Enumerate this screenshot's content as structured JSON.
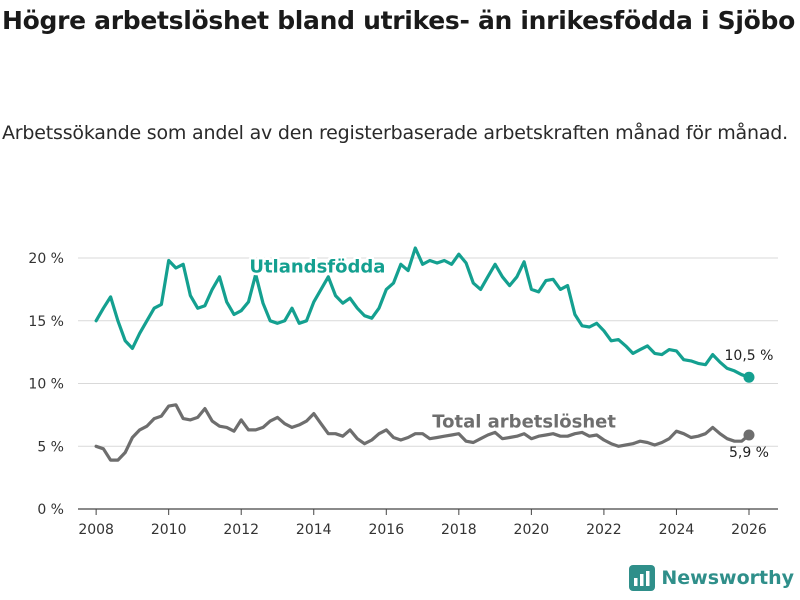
{
  "title": "Högre arbetslöshet bland utrikes- än inrikesfödda i Sjöbo",
  "subtitle": "Arbetssökande som andel av den registerbaserade arbetskraften månad för månad.",
  "brand": {
    "name": "Newsworthy",
    "icon": "newsworthy-logo-icon",
    "color": "#2f8f8a"
  },
  "chart_data": {
    "type": "line",
    "title": "Högre arbetslöshet bland utrikes- än inrikesfödda i Sjöbo",
    "xlabel": "",
    "ylabel": "",
    "xlim": [
      2007.5,
      2026.8
    ],
    "ylim": [
      0,
      20
    ],
    "grid": true,
    "y_ticks": [
      0,
      5,
      10,
      15,
      20
    ],
    "y_tick_labels": [
      "0 %",
      "5 %",
      "10 %",
      "15 %",
      "20 %"
    ],
    "x_ticks": [
      2008,
      2010,
      2012,
      2014,
      2016,
      2018,
      2020,
      2022,
      2024,
      2026
    ],
    "x_tick_labels": [
      "2008",
      "2010",
      "2012",
      "2014",
      "2016",
      "2018",
      "2020",
      "2022",
      "2024",
      "2026"
    ],
    "series": [
      {
        "name": "Utlandsfödda",
        "color": "#14a090",
        "end_label": "10,5 %",
        "x": [
          2008.0,
          2008.2,
          2008.4,
          2008.6,
          2008.8,
          2009.0,
          2009.2,
          2009.4,
          2009.6,
          2009.8,
          2010.0,
          2010.2,
          2010.4,
          2010.6,
          2010.8,
          2011.0,
          2011.2,
          2011.4,
          2011.6,
          2011.8,
          2012.0,
          2012.2,
          2012.4,
          2012.6,
          2012.8,
          2013.0,
          2013.2,
          2013.4,
          2013.6,
          2013.8,
          2014.0,
          2014.2,
          2014.4,
          2014.6,
          2014.8,
          2015.0,
          2015.2,
          2015.4,
          2015.6,
          2015.8,
          2016.0,
          2016.2,
          2016.4,
          2016.6,
          2016.8,
          2017.0,
          2017.2,
          2017.4,
          2017.6,
          2017.8,
          2018.0,
          2018.2,
          2018.4,
          2018.6,
          2018.8,
          2019.0,
          2019.2,
          2019.4,
          2019.6,
          2019.8,
          2020.0,
          2020.2,
          2020.4,
          2020.6,
          2020.8,
          2021.0,
          2021.2,
          2021.4,
          2021.6,
          2021.8,
          2022.0,
          2022.2,
          2022.4,
          2022.6,
          2022.8,
          2023.0,
          2023.2,
          2023.4,
          2023.6,
          2023.8,
          2024.0,
          2024.2,
          2024.4,
          2024.6,
          2024.8,
          2025.0,
          2025.2,
          2025.4,
          2025.6,
          2025.8,
          2026.0
        ],
        "values": [
          15.0,
          16.0,
          16.9,
          15.0,
          13.4,
          12.8,
          14.0,
          15.0,
          16.0,
          16.3,
          19.8,
          19.2,
          19.5,
          17.0,
          16.0,
          16.2,
          17.5,
          18.5,
          16.5,
          15.5,
          15.8,
          16.5,
          18.7,
          16.4,
          15.0,
          14.8,
          15.0,
          16.0,
          14.8,
          15.0,
          16.5,
          17.5,
          18.5,
          17.0,
          16.4,
          16.8,
          16.0,
          15.4,
          15.2,
          16.0,
          17.5,
          18.0,
          19.5,
          19.0,
          20.8,
          19.5,
          19.8,
          19.6,
          19.8,
          19.5,
          20.3,
          19.6,
          18.0,
          17.5,
          18.5,
          19.5,
          18.5,
          17.8,
          18.5,
          19.7,
          17.5,
          17.3,
          18.2,
          18.3,
          17.5,
          17.8,
          15.5,
          14.6,
          14.5,
          14.8,
          14.2,
          13.4,
          13.5,
          13.0,
          12.4,
          12.7,
          13.0,
          12.4,
          12.3,
          12.7,
          12.6,
          11.9,
          11.8,
          11.6,
          11.5,
          12.3,
          11.7,
          11.2,
          11.0,
          10.7,
          10.5
        ]
      },
      {
        "name": "Total arbetslöshet",
        "color": "#6e6e6e",
        "end_label": "5,9 %",
        "x": [
          2008.0,
          2008.2,
          2008.4,
          2008.6,
          2008.8,
          2009.0,
          2009.2,
          2009.4,
          2009.6,
          2009.8,
          2010.0,
          2010.2,
          2010.4,
          2010.6,
          2010.8,
          2011.0,
          2011.2,
          2011.4,
          2011.6,
          2011.8,
          2012.0,
          2012.2,
          2012.4,
          2012.6,
          2012.8,
          2013.0,
          2013.2,
          2013.4,
          2013.6,
          2013.8,
          2014.0,
          2014.2,
          2014.4,
          2014.6,
          2014.8,
          2015.0,
          2015.2,
          2015.4,
          2015.6,
          2015.8,
          2016.0,
          2016.2,
          2016.4,
          2016.6,
          2016.8,
          2017.0,
          2017.2,
          2017.4,
          2017.6,
          2017.8,
          2018.0,
          2018.2,
          2018.4,
          2018.6,
          2018.8,
          2019.0,
          2019.2,
          2019.4,
          2019.6,
          2019.8,
          2020.0,
          2020.2,
          2020.4,
          2020.6,
          2020.8,
          2021.0,
          2021.2,
          2021.4,
          2021.6,
          2021.8,
          2022.0,
          2022.2,
          2022.4,
          2022.6,
          2022.8,
          2023.0,
          2023.2,
          2023.4,
          2023.6,
          2023.8,
          2024.0,
          2024.2,
          2024.4,
          2024.6,
          2024.8,
          2025.0,
          2025.2,
          2025.4,
          2025.6,
          2025.8,
          2026.0
        ],
        "values": [
          5.0,
          4.8,
          3.9,
          3.9,
          4.5,
          5.7,
          6.3,
          6.6,
          7.2,
          7.4,
          8.2,
          8.3,
          7.2,
          7.1,
          7.3,
          8.0,
          7.0,
          6.6,
          6.5,
          6.2,
          7.1,
          6.3,
          6.3,
          6.5,
          7.0,
          7.3,
          6.8,
          6.5,
          6.7,
          7.0,
          7.6,
          6.8,
          6.0,
          6.0,
          5.8,
          6.3,
          5.6,
          5.2,
          5.5,
          6.0,
          6.3,
          5.7,
          5.5,
          5.7,
          6.0,
          6.0,
          5.6,
          5.7,
          5.8,
          5.9,
          6.0,
          5.4,
          5.3,
          5.6,
          5.9,
          6.1,
          5.6,
          5.7,
          5.8,
          6.0,
          5.6,
          5.8,
          5.9,
          6.0,
          5.8,
          5.8,
          6.0,
          6.1,
          5.8,
          5.9,
          5.5,
          5.2,
          5.0,
          5.1,
          5.2,
          5.4,
          5.3,
          5.1,
          5.3,
          5.6,
          6.2,
          6.0,
          5.7,
          5.8,
          6.0,
          6.5,
          6.0,
          5.6,
          5.4,
          5.4,
          5.9
        ]
      }
    ]
  }
}
